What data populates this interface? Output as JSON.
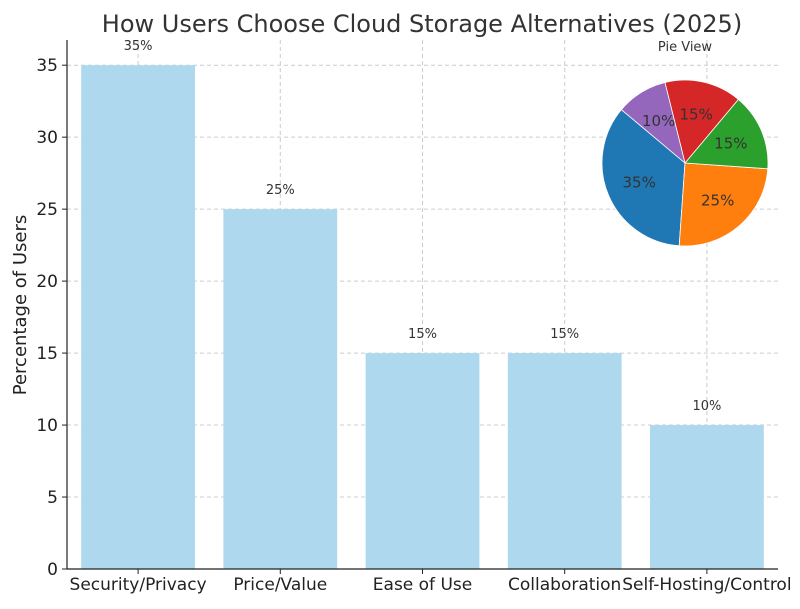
{
  "chart_data": [
    {
      "type": "bar",
      "title": "How Users Choose Cloud Storage Alternatives (2025)",
      "xlabel": "",
      "ylabel": "Percentage of Users",
      "ylim": [
        0,
        36.75
      ],
      "yticks": [
        0,
        5,
        10,
        15,
        20,
        25,
        30,
        35
      ],
      "grid": true,
      "categories": [
        "Security/Privacy",
        "Price/Value",
        "Ease of Use",
        "Collaboration",
        "Self-Hosting/Control"
      ],
      "values": [
        35,
        25,
        15,
        15,
        10
      ],
      "data_labels": [
        "35%",
        "25%",
        "15%",
        "15%",
        "10%"
      ],
      "bar_color": "#add8ee"
    },
    {
      "type": "pie",
      "title": "Pie View",
      "categories": [
        "Security/Privacy",
        "Price/Value",
        "Ease of Use",
        "Collaboration",
        "Self-Hosting/Control"
      ],
      "values": [
        35,
        25,
        15,
        15,
        10
      ],
      "labels": [
        "35%",
        "25%",
        "15%",
        "15%",
        "10%"
      ],
      "colors": [
        "#1f77b4",
        "#ff7f0e",
        "#2ca02c",
        "#d62728",
        "#9467bd"
      ],
      "start_angle_deg": 140
    }
  ]
}
